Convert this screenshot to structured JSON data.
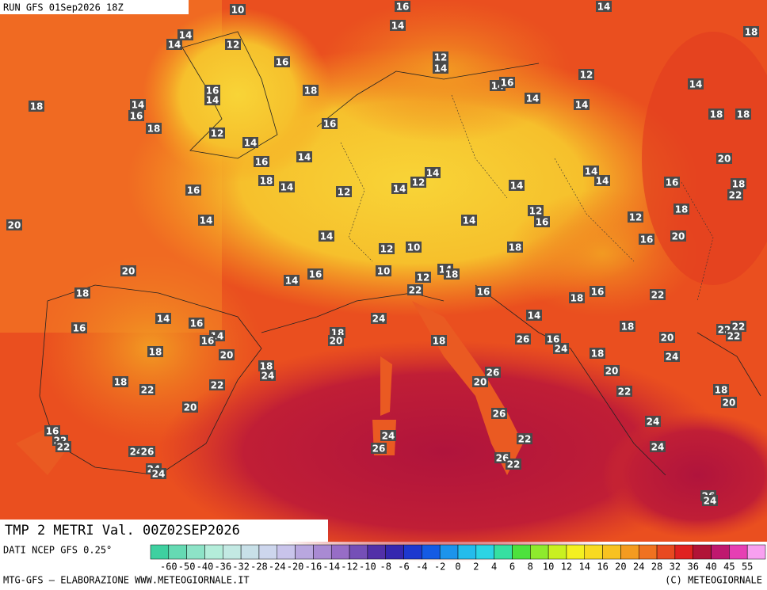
{
  "header": {
    "run": "RUN GFS 01Sep2026 18Z"
  },
  "title": "TMP 2 METRI Val. 00Z02SEP2026",
  "footer": {
    "source": "DATI NCEP GFS 0.25°",
    "credit": "MTG-GFS — ELABORAZIONE WWW.METEOGIORNALE.IT",
    "copyright": "(C) METEOGIORNALE"
  },
  "scale": {
    "ticks": [
      -60,
      -50,
      -40,
      -36,
      -32,
      -28,
      -24,
      -20,
      -16,
      -14,
      -12,
      -10,
      -8,
      -6,
      -4,
      -2,
      0,
      2,
      4,
      6,
      8,
      10,
      12,
      14,
      16,
      20,
      24,
      28,
      32,
      36,
      40,
      45,
      55
    ]
  },
  "labels": [
    10,
    16,
    14,
    18,
    14,
    14,
    12,
    14,
    16,
    12,
    14,
    12,
    18,
    16,
    14,
    14,
    16,
    18,
    14,
    16,
    14,
    14,
    14,
    16,
    18,
    18,
    18,
    12,
    14,
    14,
    16,
    20,
    14,
    14,
    14,
    18,
    14,
    12,
    14,
    12,
    14,
    16,
    18,
    22,
    16,
    14,
    12,
    16,
    12,
    18,
    20,
    14,
    14,
    16,
    20,
    18,
    12,
    10,
    20,
    10,
    14,
    16,
    14,
    18,
    12,
    22,
    16,
    18,
    18,
    16,
    22,
    14,
    16,
    16,
    14,
    16,
    24,
    14,
    18,
    22,
    22,
    22,
    18,
    20,
    18,
    26,
    16,
    24,
    20,
    18,
    20,
    18,
    24,
    18,
    24,
    26,
    20,
    18,
    22,
    22,
    20,
    22,
    18,
    20,
    20,
    26,
    24,
    16,
    22,
    22,
    24,
    22,
    24,
    26,
    26,
    24,
    26,
    22,
    24,
    24,
    26,
    24
  ]
}
